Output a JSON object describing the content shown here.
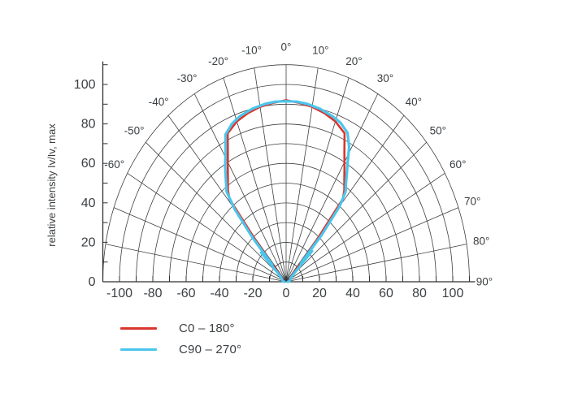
{
  "chart_data": {
    "type": "line",
    "subtype": "polar-intensity-diagram",
    "title": "",
    "ylabel": "relative intensity Iv/Iv, max",
    "xlabel": "",
    "axis_color": "#2f3133",
    "grid_color": "#3d3f41",
    "text_color": "#3c4043",
    "grid": "on",
    "legend_position": "bottom-left",
    "r_max": 110,
    "r_grid_step": 10,
    "angle_grid_step_deg": 10,
    "x_tick_labels": [
      -100,
      -80,
      -60,
      -40,
      -20,
      0,
      20,
      40,
      60,
      80,
      100
    ],
    "y_tick_labels": [
      0,
      20,
      40,
      60,
      80,
      100
    ],
    "angle_labels_deg": [
      -60,
      -50,
      -40,
      -30,
      -20,
      -10,
      0,
      10,
      20,
      30,
      40,
      50,
      60,
      70,
      80,
      90
    ],
    "angle_label_suffix": "°",
    "series": [
      {
        "name": "C0 – 180°",
        "color": "#d9362d",
        "points": [
          [
            -90,
            1
          ],
          [
            -80,
            1.5
          ],
          [
            -70,
            2
          ],
          [
            -60,
            2.5
          ],
          [
            -55,
            3
          ],
          [
            -50,
            4
          ],
          [
            -46,
            6
          ],
          [
            -43.5,
            12
          ],
          [
            -41,
            28
          ],
          [
            -39,
            54
          ],
          [
            -37,
            58
          ],
          [
            -34,
            62.5
          ],
          [
            -31,
            68
          ],
          [
            -28,
            74.5
          ],
          [
            -25,
            83
          ],
          [
            -20,
            86.5
          ],
          [
            -15,
            88.5
          ],
          [
            -10,
            90
          ],
          [
            -5,
            91
          ],
          [
            0,
            92
          ],
          [
            5,
            91
          ],
          [
            10,
            90
          ],
          [
            15,
            88.5
          ],
          [
            20,
            86.5
          ],
          [
            25,
            83
          ],
          [
            28,
            74.5
          ],
          [
            31,
            68
          ],
          [
            34,
            62.5
          ],
          [
            37,
            58
          ],
          [
            39,
            54
          ],
          [
            41,
            28
          ],
          [
            43.5,
            12
          ],
          [
            46,
            6
          ],
          [
            50,
            4
          ],
          [
            55,
            3
          ],
          [
            60,
            2.5
          ],
          [
            70,
            2
          ],
          [
            80,
            1.5
          ],
          [
            90,
            1
          ]
        ]
      },
      {
        "name": "C90 – 270°",
        "color": "#4bc5ec",
        "points": [
          [
            -90,
            1
          ],
          [
            -80,
            2
          ],
          [
            -70,
            2.5
          ],
          [
            -62,
            3
          ],
          [
            -56,
            3.5
          ],
          [
            -51,
            4.5
          ],
          [
            -48,
            7
          ],
          [
            -45.5,
            21
          ],
          [
            -44,
            12
          ],
          [
            -42,
            30
          ],
          [
            -40,
            48
          ],
          [
            -38,
            58
          ],
          [
            -35,
            63
          ],
          [
            -32,
            69
          ],
          [
            -29,
            75
          ],
          [
            -26,
            83
          ],
          [
            -22,
            86.5
          ],
          [
            -18,
            88.5
          ],
          [
            -13,
            90
          ],
          [
            -8,
            91
          ],
          [
            -4,
            91.5
          ],
          [
            0,
            91.5
          ],
          [
            4,
            91.5
          ],
          [
            8,
            91
          ],
          [
            13,
            90
          ],
          [
            18,
            88.5
          ],
          [
            22,
            87
          ],
          [
            26,
            84
          ],
          [
            29,
            78
          ],
          [
            31,
            72
          ],
          [
            33.5,
            66
          ],
          [
            36,
            61
          ],
          [
            38,
            58
          ],
          [
            40,
            50
          ],
          [
            42,
            32
          ],
          [
            43.5,
            13
          ],
          [
            45,
            22
          ],
          [
            47.5,
            8
          ],
          [
            51,
            4.5
          ],
          [
            56,
            3.5
          ],
          [
            62,
            3
          ],
          [
            70,
            2.5
          ],
          [
            80,
            2
          ],
          [
            90,
            1
          ]
        ]
      }
    ],
    "legend": [
      {
        "label": "C0 – 180°",
        "color": "#d9362d"
      },
      {
        "label": "C90 – 270°",
        "color": "#4bc5ec"
      }
    ]
  }
}
